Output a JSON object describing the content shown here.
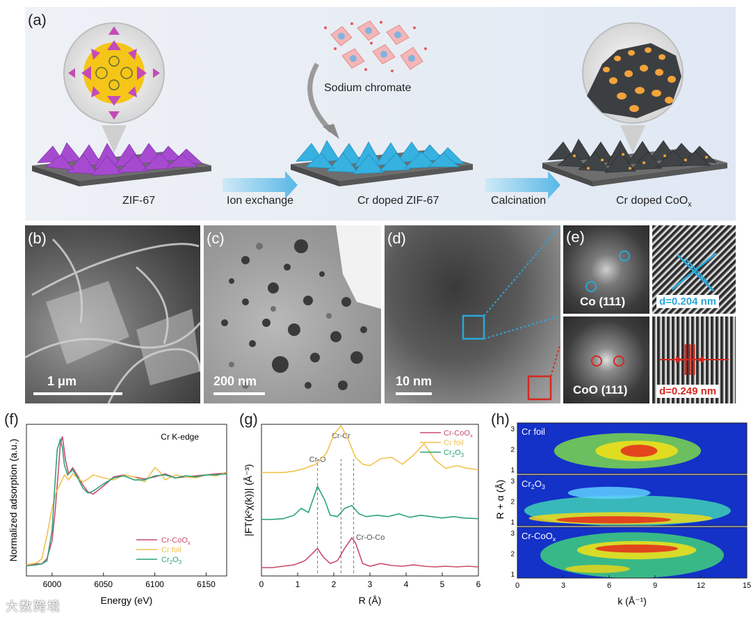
{
  "panel_a": {
    "label": "(a)",
    "stage1": "ZIF-67",
    "stage2": "Cr doped ZIF-67",
    "stage3_main": "Cr doped CoO",
    "stage3_sub": "x",
    "arrow1": "Ion exchange",
    "arrow2": "Calcination",
    "reagent": "Sodium chromate"
  },
  "panel_b": {
    "label": "(b)",
    "scale": "1 μm"
  },
  "panel_c": {
    "label": "(c)",
    "scale": "200 nm"
  },
  "panel_d": {
    "label": "(d)",
    "scale": "10 nm"
  },
  "panel_e": {
    "label": "(e)",
    "fft1": "Co (111)",
    "fft2": "CoO (111)",
    "d1": "d=0.204 nm",
    "d2": "d=0.249 nm"
  },
  "watermark": "大数跨境",
  "colors": {
    "cr_coox": "#c94c6a",
    "cr_foil": "#f2c14e",
    "cr2o3": "#2aa37a",
    "blue": "#2ba7d8",
    "red": "#d6281f"
  },
  "chart_data": [
    {
      "panel": "(f)",
      "type": "line",
      "title": "Cr K-edge",
      "xlabel": "Energy (eV)",
      "ylabel": "Normalized adsorption (a.u.)",
      "xlim": [
        5975,
        6170
      ],
      "xticks": [
        "6000",
        "6050",
        "6100",
        "6150"
      ],
      "legend": [
        "Cr-CoOx",
        "Cr foil",
        "Cr2O3"
      ],
      "series": [
        {
          "name": "Cr-CoOx",
          "x": [
            5975,
            5985,
            5990,
            5995,
            6000,
            6003,
            6006,
            6008,
            6010,
            6013,
            6016,
            6020,
            6025,
            6030,
            6035,
            6040,
            6050,
            6060,
            6070,
            6080,
            6090,
            6100,
            6110,
            6120,
            6130,
            6140,
            6150,
            6160,
            6170
          ],
          "y": [
            0.06,
            0.07,
            0.07,
            0.12,
            0.3,
            0.6,
            0.98,
            1.25,
            1.33,
            1.1,
            0.96,
            1.02,
            0.94,
            0.85,
            0.78,
            0.76,
            0.84,
            0.93,
            0.95,
            0.93,
            0.91,
            0.93,
            0.96,
            0.92,
            0.93,
            0.94,
            0.95,
            0.96,
            0.97
          ]
        },
        {
          "name": "Cr foil",
          "x": [
            5975,
            5985,
            5990,
            5995,
            6000,
            6004,
            6008,
            6012,
            6016,
            6020,
            6025,
            6030,
            6035,
            6040,
            6050,
            6060,
            6070,
            6080,
            6090,
            6100,
            6105,
            6110,
            6120,
            6130,
            6140,
            6150,
            6160,
            6170
          ],
          "y": [
            0.06,
            0.08,
            0.12,
            0.35,
            0.62,
            0.78,
            0.86,
            0.95,
            0.9,
            0.96,
            0.92,
            0.88,
            0.91,
            0.95,
            0.92,
            0.9,
            0.95,
            0.93,
            0.88,
            1.02,
            0.98,
            0.9,
            0.95,
            0.93,
            0.92,
            0.95,
            0.94,
            0.98
          ]
        },
        {
          "name": "Cr2O3",
          "x": [
            5975,
            5985,
            5990,
            5995,
            6000,
            6003,
            6005,
            6008,
            6010,
            6012,
            6015,
            6020,
            6025,
            6030,
            6035,
            6040,
            6050,
            6060,
            6070,
            6080,
            6090,
            6100,
            6110,
            6120,
            6130,
            6140,
            6150,
            6160,
            6170
          ],
          "y": [
            0.05,
            0.06,
            0.07,
            0.1,
            0.4,
            0.9,
            1.2,
            1.3,
            1.22,
            1.05,
            0.95,
            1.0,
            0.92,
            0.82,
            0.77,
            0.79,
            0.86,
            0.92,
            0.94,
            0.9,
            0.9,
            0.94,
            0.95,
            0.92,
            0.94,
            0.93,
            0.95,
            0.95,
            0.96
          ]
        }
      ]
    },
    {
      "panel": "(g)",
      "type": "line",
      "xlabel": "R (Å)",
      "ylabel": "|FT(k²χ(k))| (Å⁻³)",
      "xlim": [
        0,
        6
      ],
      "xticks": [
        "0",
        "1",
        "2",
        "3",
        "4",
        "5",
        "6"
      ],
      "annotations": [
        "Cr-Cr",
        "Cr-O",
        "Cr-O-Co"
      ],
      "legend": [
        "Cr-CoOx",
        "Cr foil",
        "Cr2O3"
      ],
      "series": [
        {
          "name": "Cr-CoOx",
          "x": [
            0,
            0.3,
            0.6,
            0.9,
            1.2,
            1.4,
            1.55,
            1.7,
            1.9,
            2.1,
            2.3,
            2.5,
            2.6,
            2.8,
            3.0,
            3.3,
            3.6,
            3.9,
            4.2,
            4.5,
            4.8,
            5.1,
            5.4,
            5.7,
            6.0
          ],
          "y": [
            0.02,
            0.02,
            0.04,
            0.06,
            0.12,
            0.22,
            0.3,
            0.18,
            0.08,
            0.12,
            0.3,
            0.45,
            0.38,
            0.08,
            0.04,
            0.08,
            0.05,
            0.04,
            0.06,
            0.04,
            0.03,
            0.04,
            0.03,
            0.04,
            0.03
          ]
        },
        {
          "name": "Cr foil",
          "x": [
            0,
            0.3,
            0.6,
            0.9,
            1.2,
            1.5,
            1.8,
            2.0,
            2.2,
            2.4,
            2.6,
            2.8,
            3.0,
            3.3,
            3.6,
            3.9,
            4.2,
            4.5,
            4.8,
            5.1,
            5.4,
            5.7,
            6.0
          ],
          "y": [
            0.0,
            0.0,
            0.0,
            0.02,
            0.06,
            0.12,
            0.28,
            0.55,
            0.68,
            0.48,
            0.22,
            0.12,
            0.1,
            0.2,
            0.22,
            0.12,
            0.25,
            0.42,
            0.18,
            0.06,
            0.1,
            0.06,
            0.04
          ]
        },
        {
          "name": "Cr2O3",
          "x": [
            0,
            0.3,
            0.6,
            0.9,
            1.1,
            1.3,
            1.55,
            1.75,
            1.9,
            2.1,
            2.3,
            2.5,
            2.7,
            2.9,
            3.2,
            3.5,
            3.8,
            4.1,
            4.4,
            4.7,
            5.0,
            5.3,
            5.6,
            6.0
          ],
          "y": [
            0.02,
            0.02,
            0.03,
            0.08,
            0.18,
            0.12,
            0.5,
            0.3,
            0.08,
            0.06,
            0.18,
            0.22,
            0.1,
            0.06,
            0.08,
            0.06,
            0.1,
            0.05,
            0.08,
            0.06,
            0.04,
            0.06,
            0.04,
            0.03
          ]
        }
      ]
    },
    {
      "panel": "(h)",
      "type": "heatmap",
      "xlabel": "k (Å⁻¹)",
      "ylabel": "R + α (Å)",
      "xlim": [
        0,
        15
      ],
      "xticks": [
        "0",
        "3",
        "6",
        "9",
        "12",
        "15"
      ],
      "yticks": [
        "1",
        "2",
        "3"
      ],
      "maps": [
        "Cr foil",
        "Cr2O3",
        "Cr-CoOx"
      ]
    }
  ]
}
